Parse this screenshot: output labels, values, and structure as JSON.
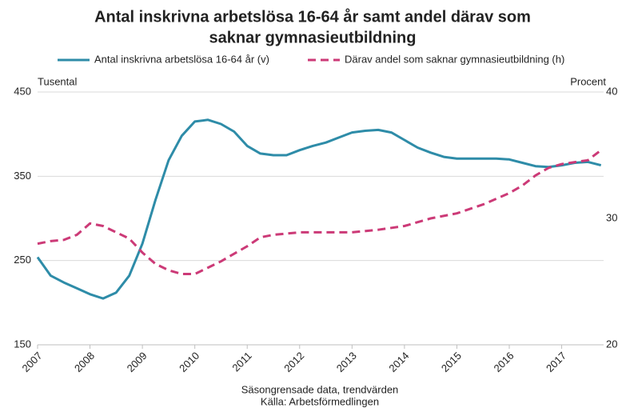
{
  "chart_data": {
    "type": "line",
    "title": [
      "Antal inskrivna arbetslösa 16-64 år samt andel därav som",
      "saknar gymnasieutbildning"
    ],
    "y_label": "Tusental",
    "y2_label": "Procent",
    "notes": [
      "Säsongrensade data, trendvärden",
      "Källa: Arbetsförmedlingen"
    ],
    "xlim": [
      2007,
      2017.8
    ],
    "xticks": [
      2007,
      2008,
      2009,
      2010,
      2011,
      2012,
      2013,
      2014,
      2015,
      2016,
      2017
    ],
    "ylim": [
      150,
      450
    ],
    "yticks": [
      150,
      250,
      350,
      450
    ],
    "y2lim": [
      20,
      40
    ],
    "y2ticks": [
      20,
      30,
      40
    ],
    "grid": true,
    "series": [
      {
        "name": "Antal inskrivna arbetslösa 16-64 år (v)",
        "color": "#2e8ca8",
        "dash": false,
        "axis": "y",
        "x": [
          2007,
          2007.25,
          2007.5,
          2007.75,
          2008,
          2008.25,
          2008.5,
          2008.75,
          2009,
          2009.25,
          2009.5,
          2009.75,
          2010,
          2010.25,
          2010.5,
          2010.75,
          2011,
          2011.25,
          2011.5,
          2011.75,
          2012,
          2012.25,
          2012.5,
          2012.75,
          2013,
          2013.25,
          2013.5,
          2013.75,
          2014,
          2014.25,
          2014.5,
          2014.75,
          2015,
          2015.25,
          2015.5,
          2015.75,
          2016,
          2016.25,
          2016.5,
          2016.75,
          2017,
          2017.25,
          2017.5,
          2017.75
        ],
        "values": [
          254,
          232,
          224,
          217,
          210,
          205,
          212,
          232,
          270,
          322,
          369,
          398,
          415,
          417,
          412,
          403,
          386,
          377,
          375,
          375,
          381,
          386,
          390,
          396,
          402,
          404,
          405,
          402,
          393,
          384,
          378,
          373,
          371,
          371,
          371,
          371,
          370,
          366,
          362,
          361,
          363,
          366,
          367,
          363
        ]
      },
      {
        "name": "Därav andel som saknar gymnasieutbildning (h)",
        "color": "#cc3a77",
        "dash": true,
        "axis": "y2",
        "x": [
          2007,
          2007.25,
          2007.5,
          2007.75,
          2008,
          2008.25,
          2008.5,
          2008.75,
          2009,
          2009.25,
          2009.5,
          2009.75,
          2010,
          2010.25,
          2010.5,
          2010.75,
          2011,
          2011.25,
          2011.5,
          2011.75,
          2012,
          2012.5,
          2013,
          2013.5,
          2014,
          2014.5,
          2015,
          2015.5,
          2016,
          2016.25,
          2016.5,
          2016.75,
          2017,
          2017.5,
          2017.75
        ],
        "values": [
          28.0,
          28.2,
          28.3,
          28.7,
          29.6,
          29.4,
          28.9,
          28.4,
          27.3,
          26.4,
          25.9,
          25.6,
          25.6,
          26.1,
          26.6,
          27.2,
          27.8,
          28.5,
          28.7,
          28.8,
          28.9,
          28.9,
          28.9,
          29.1,
          29.4,
          30.0,
          30.4,
          31.1,
          32.0,
          32.6,
          33.4,
          34.0,
          34.3,
          34.6,
          35.4
        ]
      }
    ]
  }
}
